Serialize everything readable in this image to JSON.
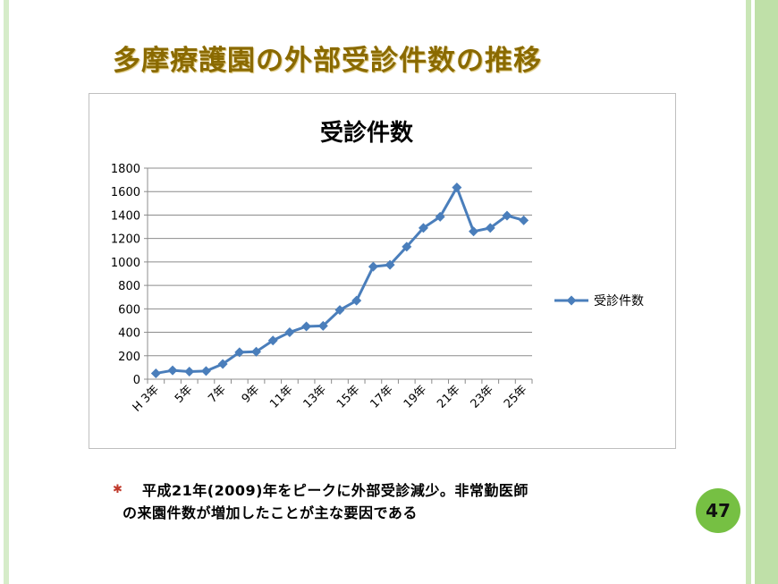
{
  "slide": {
    "title": "多摩療護園の外部受診件数の推移",
    "note_line1": "平成21年(2009)年をピークに外部受診減少。非常勤医師",
    "note_line2": "の来園件数が増加したことが主な要因である",
    "bullet_icon": "asterisk-bullet-icon",
    "page_number": "47",
    "accent_color": "#76c043",
    "title_color": "#8a6a00"
  },
  "chart_data": {
    "type": "line",
    "title": "受診件数",
    "xlabel": "",
    "ylabel": "",
    "ylim": [
      0,
      1800
    ],
    "y_ticks": [
      0,
      200,
      400,
      600,
      800,
      1000,
      1200,
      1400,
      1600,
      1800
    ],
    "x_tick_labels": [
      "H 3年",
      "5年",
      "7年",
      "9年",
      "11年",
      "13年",
      "15年",
      "17年",
      "19年",
      "21年",
      "23年",
      "25年"
    ],
    "categories": [
      "H3",
      "H4",
      "H5",
      "H6",
      "H7",
      "H8",
      "H9",
      "H10",
      "H11",
      "H12",
      "H13",
      "H14",
      "H15",
      "H16",
      "H17",
      "H18",
      "H19",
      "H20",
      "H21",
      "H22",
      "H23",
      "H24",
      "H25"
    ],
    "series": [
      {
        "name": "受診件数",
        "color": "#4a7ebb",
        "values": [
          50,
          75,
          65,
          70,
          130,
          230,
          235,
          330,
          400,
          450,
          455,
          590,
          670,
          960,
          975,
          1130,
          1290,
          1385,
          1635,
          1260,
          1290,
          1395,
          1355
        ]
      }
    ],
    "grid": true,
    "legend_position": "right"
  }
}
